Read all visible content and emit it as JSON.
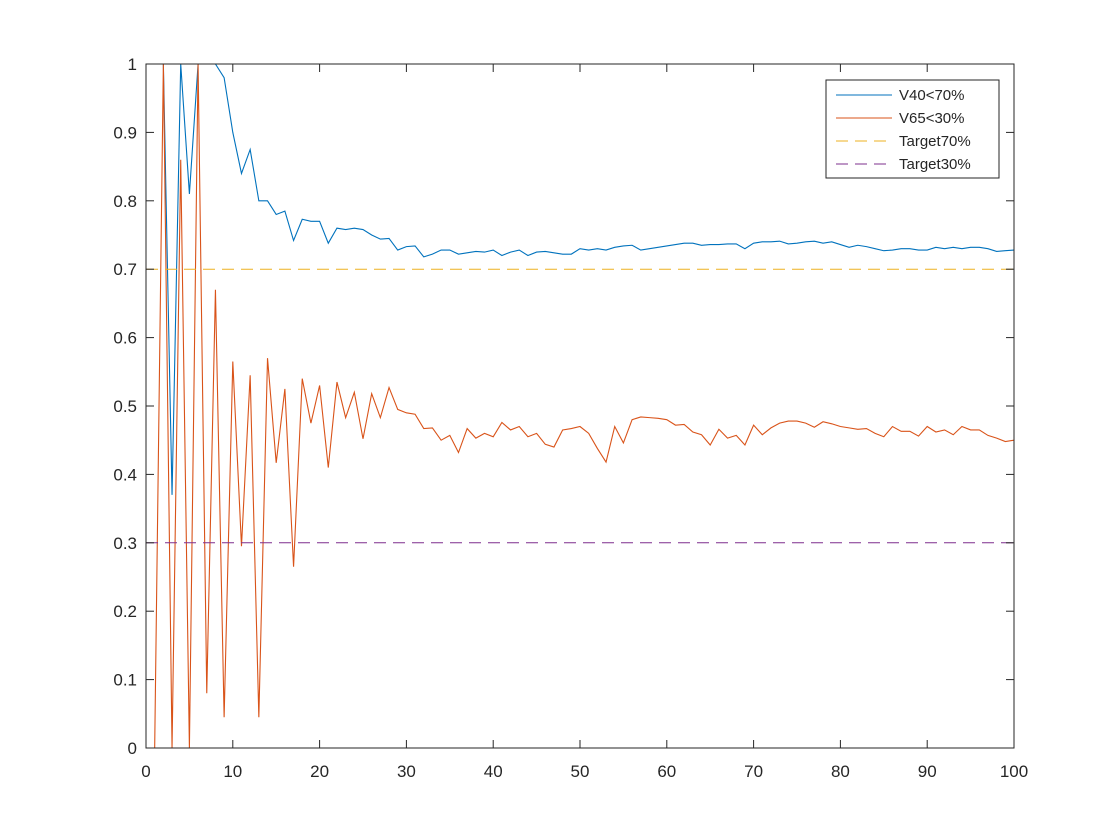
{
  "chart_data": {
    "type": "line",
    "title": "",
    "xlabel": "",
    "ylabel": "",
    "xlim": [
      0,
      100
    ],
    "ylim": [
      0,
      1
    ],
    "xticks": [
      0,
      10,
      20,
      30,
      40,
      50,
      60,
      70,
      80,
      90,
      100
    ],
    "yticks": [
      0,
      0.1,
      0.2,
      0.3,
      0.4,
      0.5,
      0.6,
      0.7,
      0.8,
      0.9,
      1
    ],
    "xtick_labels": [
      "0",
      "10",
      "20",
      "30",
      "40",
      "50",
      "60",
      "70",
      "80",
      "90",
      "100"
    ],
    "ytick_labels": [
      "0",
      "0.1",
      "0.2",
      "0.3",
      "0.4",
      "0.5",
      "0.6",
      "0.7",
      "0.8",
      "0.9",
      "1"
    ],
    "grid": false,
    "legend_position": "top-right",
    "x": [
      1,
      2,
      3,
      4,
      5,
      6,
      7,
      8,
      9,
      10,
      11,
      12,
      13,
      14,
      15,
      16,
      17,
      18,
      19,
      20,
      21,
      22,
      23,
      24,
      25,
      26,
      27,
      28,
      29,
      30,
      31,
      32,
      33,
      34,
      35,
      36,
      37,
      38,
      39,
      40,
      41,
      42,
      43,
      44,
      45,
      46,
      47,
      48,
      49,
      50,
      51,
      52,
      53,
      54,
      55,
      56,
      57,
      58,
      59,
      60,
      61,
      62,
      63,
      64,
      65,
      66,
      67,
      68,
      69,
      70,
      71,
      72,
      73,
      74,
      75,
      76,
      77,
      78,
      79,
      80,
      81,
      82,
      83,
      84,
      85,
      86,
      87,
      88,
      89,
      90,
      91,
      92,
      93,
      94,
      95,
      96,
      97,
      98,
      99,
      100
    ],
    "series": [
      {
        "name": "V40<70%",
        "color": "#0072BD",
        "style": "solid",
        "values": [
          1.0,
          1.0,
          0.37,
          1.0,
          0.81,
          1.0,
          1.0,
          1.0,
          0.98,
          0.9,
          0.84,
          0.875,
          0.8,
          0.8,
          0.78,
          0.785,
          0.742,
          0.773,
          0.77,
          0.77,
          0.738,
          0.76,
          0.758,
          0.76,
          0.758,
          0.75,
          0.744,
          0.745,
          0.728,
          0.733,
          0.734,
          0.718,
          0.722,
          0.728,
          0.728,
          0.722,
          0.724,
          0.726,
          0.725,
          0.728,
          0.72,
          0.725,
          0.728,
          0.72,
          0.725,
          0.726,
          0.724,
          0.722,
          0.722,
          0.73,
          0.728,
          0.73,
          0.728,
          0.732,
          0.734,
          0.735,
          0.728,
          0.73,
          0.732,
          0.734,
          0.736,
          0.738,
          0.738,
          0.735,
          0.736,
          0.736,
          0.737,
          0.737,
          0.73,
          0.738,
          0.74,
          0.74,
          0.741,
          0.737,
          0.738,
          0.74,
          0.741,
          0.738,
          0.74,
          0.736,
          0.732,
          0.735,
          0.733,
          0.73,
          0.727,
          0.728,
          0.73,
          0.73,
          0.728,
          0.728,
          0.732,
          0.73,
          0.732,
          0.73,
          0.732,
          0.732,
          0.73,
          0.726,
          0.727,
          0.728
        ]
      },
      {
        "name": "V65<30%",
        "color": "#D95319",
        "style": "solid",
        "values": [
          0.0,
          1.0,
          0.0,
          0.86,
          0.0,
          1.0,
          0.08,
          0.67,
          0.045,
          0.565,
          0.295,
          0.545,
          0.045,
          0.57,
          0.417,
          0.525,
          0.265,
          0.54,
          0.475,
          0.53,
          0.41,
          0.535,
          0.483,
          0.52,
          0.452,
          0.518,
          0.483,
          0.527,
          0.495,
          0.49,
          0.488,
          0.467,
          0.468,
          0.45,
          0.457,
          0.432,
          0.467,
          0.453,
          0.46,
          0.455,
          0.476,
          0.465,
          0.47,
          0.455,
          0.46,
          0.444,
          0.44,
          0.465,
          0.467,
          0.47,
          0.46,
          0.438,
          0.418,
          0.47,
          0.446,
          0.48,
          0.484,
          0.483,
          0.482,
          0.48,
          0.472,
          0.473,
          0.462,
          0.458,
          0.443,
          0.466,
          0.453,
          0.457,
          0.443,
          0.472,
          0.458,
          0.468,
          0.475,
          0.478,
          0.478,
          0.475,
          0.469,
          0.477,
          0.474,
          0.47,
          0.468,
          0.466,
          0.467,
          0.46,
          0.455,
          0.47,
          0.463,
          0.463,
          0.456,
          0.47,
          0.462,
          0.465,
          0.458,
          0.47,
          0.465,
          0.465,
          0.457,
          0.453,
          0.448,
          0.45
        ]
      },
      {
        "name": "Target70%",
        "color": "#EDB120",
        "style": "dashed",
        "constant": 0.7
      },
      {
        "name": "Target30%",
        "color": "#7E2F8E",
        "style": "dashed",
        "constant": 0.3
      }
    ]
  }
}
